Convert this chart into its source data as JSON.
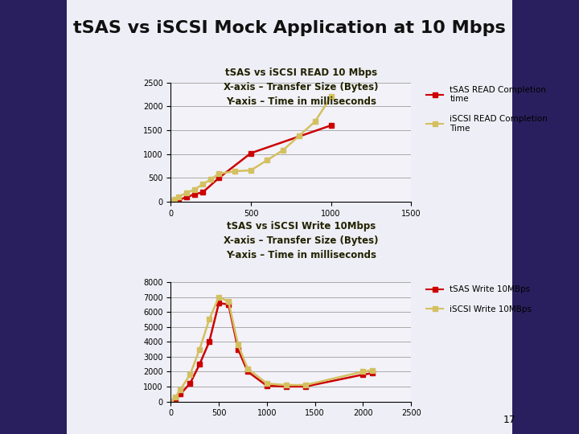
{
  "title": "tSAS vs iSCSI Mock Application at 10 Mbps",
  "title_fontsize": 16,
  "read_title_line1": "tSAS vs iSCSI READ 10 Mbps",
  "read_title_line2": "X-axis – Transfer Size (Bytes)",
  "read_title_line3": "Y-axis – Time in milliseconds",
  "read_tsas_x": [
    0,
    10,
    25,
    50,
    100,
    150,
    200,
    300,
    500,
    1000
  ],
  "read_tsas_y": [
    0,
    5,
    15,
    40,
    100,
    160,
    200,
    500,
    1020,
    1600
  ],
  "read_iscsi_x": [
    0,
    10,
    25,
    50,
    100,
    150,
    200,
    250,
    300,
    400,
    500,
    600,
    700,
    800,
    900,
    1000
  ],
  "read_iscsi_y": [
    0,
    20,
    50,
    110,
    190,
    260,
    370,
    470,
    590,
    640,
    660,
    870,
    1080,
    1380,
    1680,
    2200
  ],
  "read_xlim": [
    0,
    1500
  ],
  "read_ylim": [
    0,
    2500
  ],
  "read_xticks": [
    0,
    500,
    1000,
    1500
  ],
  "read_yticks": [
    0,
    500,
    1000,
    1500,
    2000,
    2500
  ],
  "write_title_line1": "tSAS vs iSCSI Write 10Mbps",
  "write_title_line2": "X-axis – Transfer Size (Bytes)",
  "write_title_line3": "Y-axis – Time in milliseconds",
  "write_tsas_x": [
    0,
    50,
    100,
    200,
    300,
    400,
    500,
    600,
    700,
    800,
    1000,
    1200,
    1400,
    2000,
    2100
  ],
  "write_tsas_y": [
    0,
    200,
    500,
    1200,
    2500,
    4000,
    6600,
    6500,
    3500,
    2000,
    1050,
    1000,
    1000,
    1800,
    1900
  ],
  "write_iscsi_x": [
    0,
    50,
    100,
    200,
    300,
    400,
    500,
    600,
    700,
    800,
    1000,
    1200,
    1400,
    2000,
    2100
  ],
  "write_iscsi_y": [
    0,
    300,
    800,
    1800,
    3500,
    5500,
    7000,
    6700,
    3800,
    2200,
    1200,
    1100,
    1100,
    2000,
    2100
  ],
  "write_xlim": [
    0,
    2500
  ],
  "write_ylim": [
    0,
    8000
  ],
  "write_xticks": [
    0,
    500,
    1000,
    1500,
    2000,
    2500
  ],
  "write_yticks": [
    0,
    1000,
    2000,
    3000,
    4000,
    5000,
    6000,
    7000,
    8000
  ],
  "tsas_color": "#cc0000",
  "iscsi_color": "#d4c060",
  "line_width": 1.8,
  "marker": "s",
  "marker_size": 4,
  "legend_read_tsas": "tSAS READ Completion\ntime",
  "legend_read_iscsi": "iSCSI READ Completion\nTime",
  "legend_write_tsas": "tSAS Write 10MBps",
  "legend_write_iscsi": "iSCSI Write 10MBps",
  "page_number": "17",
  "dark_side_color": "#2a1f5e",
  "slide_bg": "#eeeef6",
  "chart_bg": "#f2f2f8",
  "grid_color": "#aaaaaa",
  "title_color": "#111111",
  "chart_title_color": "#222200",
  "tick_fontsize": 7,
  "chart_title_fontsize": 8.5,
  "legend_fontsize": 7.5
}
